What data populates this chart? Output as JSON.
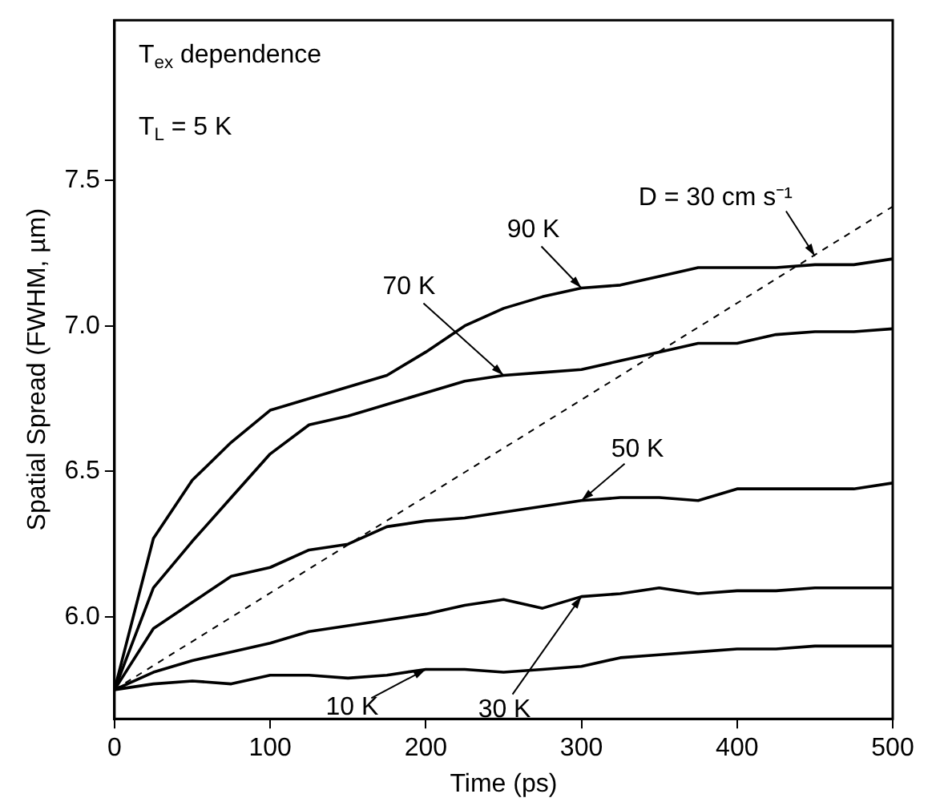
{
  "chart_data": {
    "type": "line",
    "xlabel": "Time (ps)",
    "ylabel": "Spatial Spread (FWHM, µm)",
    "x": [
      0,
      25,
      50,
      75,
      100,
      125,
      150,
      175,
      200,
      225,
      250,
      275,
      300,
      325,
      350,
      375,
      400,
      425,
      450,
      475,
      500
    ],
    "xlim": [
      0,
      500
    ],
    "xticks": [
      0,
      100,
      200,
      300,
      400,
      500
    ],
    "ylim": [
      5.65,
      8.05
    ],
    "yticks": [
      {
        "value": 6,
        "label": "6.0"
      },
      {
        "value": 6.5,
        "label": "6.5"
      },
      {
        "value": 7,
        "label": "7.0"
      },
      {
        "value": 7.5,
        "label": "7.5"
      }
    ],
    "grid": false,
    "legend": false,
    "marker": "none",
    "series": [
      {
        "color": "#000000",
        "values": [
          5.75,
          6.27,
          6.47,
          6.6,
          6.71,
          6.75,
          6.79,
          6.83,
          6.91,
          7.0,
          7.06,
          7.1,
          7.13,
          7.14,
          7.17,
          7.2,
          7.2,
          7.2,
          7.21,
          7.21,
          7.23
        ]
      },
      {
        "color": "#000000",
        "values": [
          5.75,
          6.1,
          6.26,
          6.41,
          6.56,
          6.66,
          6.69,
          6.73,
          6.77,
          6.81,
          6.83,
          6.84,
          6.85,
          6.88,
          6.91,
          6.94,
          6.94,
          6.97,
          6.98,
          6.98,
          6.99
        ]
      },
      {
        "color": "#000000",
        "values": [
          5.75,
          5.96,
          6.05,
          6.14,
          6.17,
          6.23,
          6.25,
          6.31,
          6.33,
          6.34,
          6.36,
          6.38,
          6.4,
          6.41,
          6.41,
          6.4,
          6.44,
          6.44,
          6.44,
          6.44,
          6.46
        ]
      },
      {
        "color": "#000000",
        "values": [
          5.75,
          5.81,
          5.85,
          5.88,
          5.91,
          5.95,
          5.97,
          5.99,
          6.01,
          6.04,
          6.06,
          6.03,
          6.07,
          6.08,
          6.1,
          6.08,
          6.09,
          6.09,
          6.1,
          6.1,
          6.1
        ]
      },
      {
        "color": "#000000",
        "values": [
          5.75,
          5.77,
          5.78,
          5.77,
          5.8,
          5.8,
          5.79,
          5.8,
          5.82,
          5.82,
          5.81,
          5.82,
          5.83,
          5.86,
          5.87,
          5.88,
          5.89,
          5.89,
          5.9,
          5.9,
          5.9
        ]
      },
      {
        "color": "#000000",
        "line_style": "dashed",
        "x": [
          0,
          500
        ],
        "values": [
          5.75,
          7.41
        ]
      }
    ],
    "annotations": [
      "T$_{ex}$ dependence",
      "T$_{L}$ = 5 K",
      {
        "text": "90 K",
        "x": 300,
        "y": 7.13
      },
      {
        "text": "70 K",
        "x": 250,
        "y": 6.83
      },
      {
        "text": "50 K",
        "x": 300,
        "y": 6.4
      },
      {
        "text": "30 K",
        "x": 300,
        "y": 6.07
      },
      {
        "text": "10 K",
        "x": 200,
        "y": 5.82
      },
      {
        "text": "D = 30 cm s⁻¹",
        "x": 450,
        "y": 7.24
      }
    ]
  }
}
